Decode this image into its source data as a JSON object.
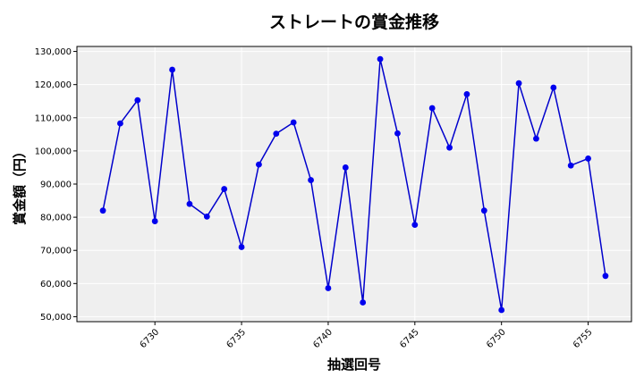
{
  "chart_data": {
    "type": "line",
    "title": "ストレートの賞金推移",
    "xlabel": "抽選回号",
    "ylabel": "賞金額（円）",
    "xlim": [
      6725.5,
      6757.5
    ],
    "ylim": [
      48500,
      131500
    ],
    "xticks": [
      6730,
      6735,
      6740,
      6745,
      6750,
      6755
    ],
    "yticks": [
      50000,
      60000,
      70000,
      80000,
      90000,
      100000,
      110000,
      120000,
      130000
    ],
    "ytick_labels": [
      "50,000",
      "60,000",
      "70,000",
      "80,000",
      "90,000",
      "100,000",
      "110,000",
      "120,000",
      "130,000"
    ],
    "grid": true,
    "line_color": "#0000cc",
    "marker_color": "#0000ee",
    "plot_bg": "#efefef",
    "x": [
      6727,
      6728,
      6729,
      6730,
      6731,
      6732,
      6733,
      6734,
      6735,
      6736,
      6737,
      6738,
      6739,
      6740,
      6741,
      6742,
      6743,
      6744,
      6745,
      6746,
      6747,
      6748,
      6749,
      6750,
      6751,
      6752,
      6753,
      6754,
      6755,
      6756
    ],
    "values": [
      82000,
      108300,
      115300,
      78800,
      124500,
      84000,
      80200,
      88500,
      71000,
      95900,
      105200,
      108600,
      91200,
      58600,
      95000,
      54300,
      127700,
      105300,
      77700,
      112900,
      101000,
      117100,
      82000,
      52000,
      120400,
      103700,
      119100,
      95600,
      97700,
      62300
    ]
  }
}
